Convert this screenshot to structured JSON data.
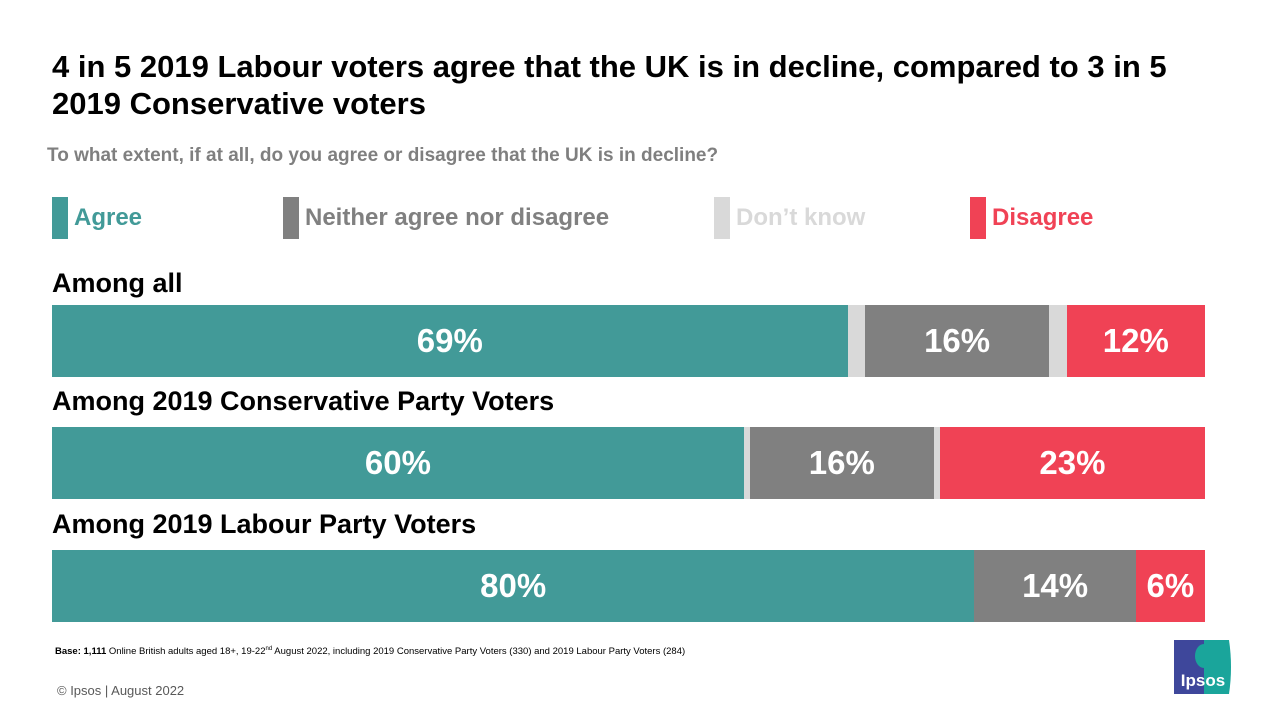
{
  "title": "4 in 5 2019 Labour voters agree that the UK is in decline, compared to 3 in 5 2019 Conservative voters",
  "footer": {
    "base_label": "Base:",
    "base_count": "1,111",
    "base_text": "Online British adults aged 18+, 19-22",
    "base_sup": "nd",
    "base_text2": "August 2022, including 2019 Conservative Party Voters (330) and 2019 Labour Party Voters (284)",
    "copyright": "© Ipsos | August 2022",
    "logo_text": "Ipsos"
  },
  "chart_data": {
    "type": "bar",
    "orientation": "horizontal-stacked-100",
    "subtitle": "To what extent, if at all, do you agree or disagree that the UK is in decline?",
    "legend_position": "top",
    "legend": [
      {
        "name": "Agree",
        "color": "#429a98"
      },
      {
        "name": "Neither agree nor disagree",
        "color": "#808080"
      },
      {
        "name": "Don’t know",
        "color": "#d9d9d9"
      },
      {
        "name": "Disagree",
        "color": "#f04255"
      }
    ],
    "categories": [
      "Among all",
      "Among 2019 Conservative Party Voters",
      "Among 2019 Labour Party Voters"
    ],
    "series": [
      {
        "name": "Agree",
        "values": [
          69,
          60,
          80
        ],
        "labels": [
          "69%",
          "60%",
          "80%"
        ]
      },
      {
        "name": "Neither agree nor disagree",
        "values": [
          16,
          16,
          14
        ],
        "labels": [
          "16%",
          "16%",
          "14%"
        ]
      },
      {
        "name": "Don’t know",
        "values": [
          3,
          1,
          0
        ]
      },
      {
        "name": "Disagree",
        "values": [
          12,
          23,
          6
        ],
        "labels": [
          "12%",
          "23%",
          "6%"
        ]
      }
    ],
    "xlim": [
      0,
      100
    ]
  }
}
